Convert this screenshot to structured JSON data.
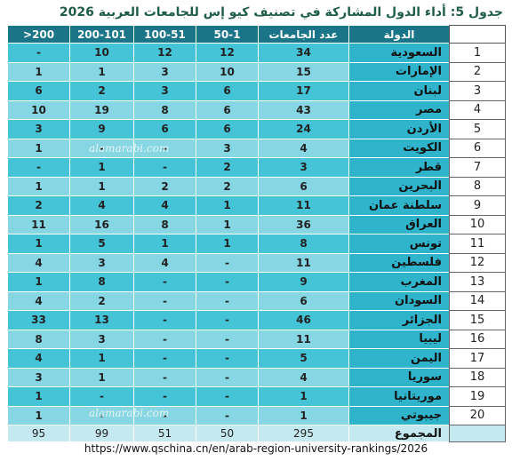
{
  "title": "جدول 5: أداء الدول المشاركة في تصنيف كيو إس للجامعات العربية 2026",
  "table": {
    "headers": [
      "الدولة",
      "عدد الجامعات",
      "50-1",
      "100-51",
      "200-101",
      ">200"
    ],
    "rows": [
      [
        1,
        "السعودية",
        34,
        12,
        12,
        10,
        "-"
      ],
      [
        2,
        "الإمارات",
        15,
        10,
        3,
        1,
        1
      ],
      [
        3,
        "لبنان",
        17,
        6,
        3,
        2,
        6
      ],
      [
        4,
        "مصر",
        43,
        6,
        8,
        19,
        10
      ],
      [
        5,
        "الأردن",
        24,
        6,
        6,
        9,
        3
      ],
      [
        6,
        "الكويت",
        4,
        3,
        "-",
        "-",
        1
      ],
      [
        7,
        "قطر",
        3,
        2,
        "-",
        1,
        "-"
      ],
      [
        8,
        "البحرين",
        6,
        2,
        2,
        1,
        1
      ],
      [
        9,
        "سلطنة عمان",
        11,
        1,
        4,
        4,
        2
      ],
      [
        10,
        "العراق",
        36,
        1,
        8,
        16,
        11
      ],
      [
        11,
        "تونس",
        8,
        1,
        1,
        5,
        1
      ],
      [
        12,
        "فلسطين",
        11,
        "-",
        4,
        3,
        4
      ],
      [
        13,
        "المغرب",
        9,
        "-",
        "-",
        8,
        1
      ],
      [
        14,
        "السودان",
        6,
        "-",
        "-",
        2,
        4
      ],
      [
        15,
        "الجزائر",
        46,
        "-",
        "-",
        13,
        33
      ],
      [
        16,
        "ليبيا",
        11,
        "-",
        "-",
        3,
        8
      ],
      [
        17,
        "اليمن",
        5,
        "-",
        "-",
        1,
        4
      ],
      [
        18,
        "سوريا",
        4,
        "-",
        "-",
        1,
        3
      ],
      [
        19,
        "موريتانيا",
        1,
        "-",
        "-",
        "-",
        1
      ],
      [
        20,
        "جيبوتي",
        1,
        "-",
        "-",
        "-",
        1
      ]
    ],
    "total": {
      "label": "المجموع",
      "values": [
        295,
        50,
        51,
        99,
        95
      ]
    }
  },
  "watermarks": [
    "alamarabi.com",
    "alamarabi.com"
  ],
  "source": "https://www.qschina.cn/en/arab-region-university-rankings/2026"
}
